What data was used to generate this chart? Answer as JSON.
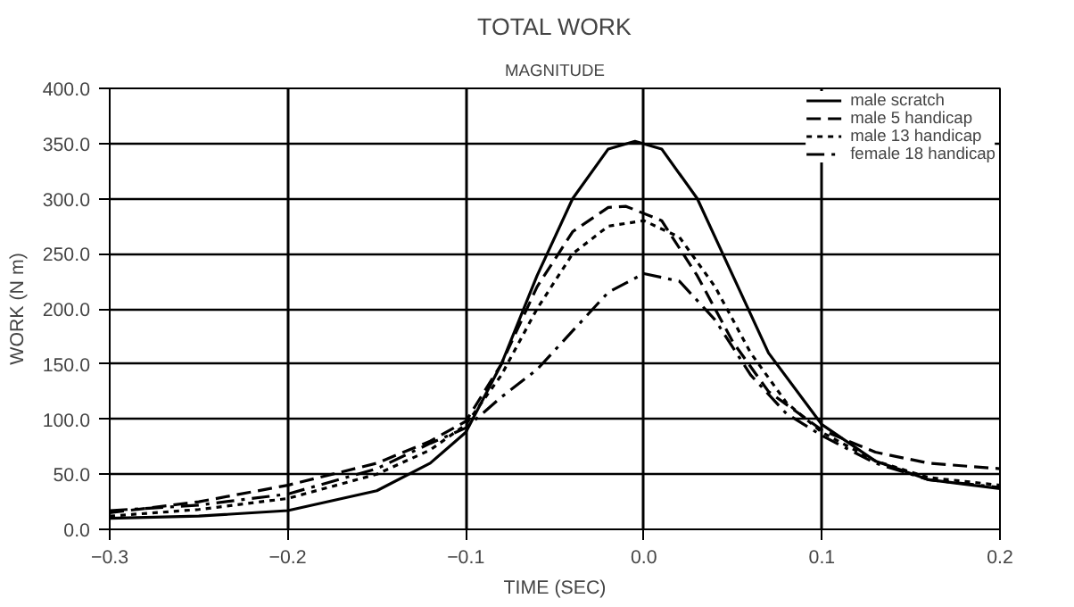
{
  "chart_data": {
    "type": "line",
    "title": "TOTAL WORK",
    "subtitle": "MAGNITUDE",
    "xlabel": "TIME (SEC)",
    "ylabel": "WORK (N m)",
    "xlim": [
      -0.3,
      0.2
    ],
    "xticks": [
      -0.3,
      -0.2,
      -0.1,
      {
        "value": 0,
        "label": "0.0"
      },
      0.1,
      0.2
    ],
    "ylim": [
      0,
      400
    ],
    "yticks": [
      {
        "value": 0,
        "label": "0.0"
      },
      {
        "value": 50,
        "label": "50.0"
      },
      {
        "value": 100,
        "label": "100.0"
      },
      {
        "value": 150,
        "label": "150.0"
      },
      {
        "value": 200,
        "label": "200.0"
      },
      {
        "value": 250,
        "label": "250.0"
      },
      {
        "value": 300,
        "label": "300.0"
      },
      {
        "value": 350,
        "label": "350.0"
      },
      {
        "value": 400,
        "label": "400.0"
      }
    ],
    "grid": true,
    "legend": "top right",
    "series": [
      {
        "name": "male scratch",
        "color": "#000000",
        "line_style": "solid",
        "x": [
          -0.3,
          -0.25,
          -0.2,
          -0.15,
          -0.12,
          -0.1,
          -0.08,
          -0.06,
          -0.04,
          -0.02,
          -0.005,
          0.01,
          0.03,
          0.05,
          0.07,
          0.1,
          0.13,
          0.16,
          0.2
        ],
        "values": [
          10,
          12,
          17,
          35,
          60,
          88,
          150,
          230,
          300,
          345,
          352,
          345,
          300,
          230,
          160,
          95,
          62,
          45,
          37
        ]
      },
      {
        "name": "male 5 handicap",
        "color": "#000000",
        "line_style": "dashed",
        "x": [
          -0.3,
          -0.25,
          -0.2,
          -0.15,
          -0.12,
          -0.1,
          -0.08,
          -0.06,
          -0.04,
          -0.02,
          -0.01,
          0.01,
          0.03,
          0.05,
          0.07,
          0.1,
          0.13,
          0.16,
          0.2
        ],
        "values": [
          15,
          25,
          40,
          60,
          80,
          98,
          150,
          220,
          270,
          292,
          293,
          280,
          230,
          170,
          125,
          90,
          70,
          60,
          55
        ]
      },
      {
        "name": "male 13 handicap",
        "color": "#000000",
        "line_style": "dotted",
        "x": [
          -0.3,
          -0.25,
          -0.2,
          -0.15,
          -0.12,
          -0.1,
          -0.08,
          -0.06,
          -0.04,
          -0.02,
          0.0,
          0.02,
          0.04,
          0.06,
          0.08,
          0.1,
          0.13,
          0.16,
          0.2
        ],
        "values": [
          12,
          18,
          28,
          50,
          72,
          95,
          140,
          200,
          250,
          275,
          280,
          265,
          220,
          160,
          115,
          88,
          62,
          47,
          40
        ]
      },
      {
        "name": "female 18 handicap",
        "color": "#000000",
        "line_style": "dashdot",
        "x": [
          -0.3,
          -0.25,
          -0.2,
          -0.15,
          -0.12,
          -0.1,
          -0.08,
          -0.06,
          -0.04,
          -0.02,
          0.0,
          0.02,
          0.04,
          0.06,
          0.08,
          0.1,
          0.13,
          0.16,
          0.2
        ],
        "values": [
          17,
          22,
          32,
          55,
          78,
          92,
          120,
          145,
          180,
          215,
          232,
          225,
          190,
          140,
          105,
          85,
          60,
          45,
          38
        ]
      }
    ]
  }
}
